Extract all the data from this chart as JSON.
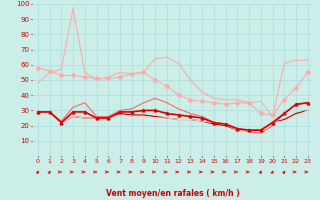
{
  "x": [
    0,
    1,
    2,
    3,
    4,
    5,
    6,
    7,
    8,
    9,
    10,
    11,
    12,
    13,
    14,
    15,
    16,
    17,
    18,
    19,
    20,
    21,
    22,
    23
  ],
  "series": [
    {
      "name": "rafales_max_line",
      "color": "#ffaaaa",
      "linewidth": 0.8,
      "marker": null,
      "values": [
        48,
        55,
        57,
        97,
        55,
        50,
        52,
        55,
        54,
        55,
        64,
        65,
        61,
        50,
        42,
        38,
        37,
        37,
        35,
        36,
        26,
        61,
        63,
        63
      ]
    },
    {
      "name": "rafales_mean_diamond",
      "color": "#ffaaaa",
      "linewidth": 0.8,
      "marker": "D",
      "markersize": 2,
      "values": [
        58,
        56,
        53,
        53,
        52,
        51,
        51,
        52,
        54,
        55,
        50,
        46,
        40,
        37,
        36,
        35,
        34,
        35,
        35,
        28,
        27,
        37,
        45,
        55
      ]
    },
    {
      "name": "vent_moyen_max",
      "color": "#ff6666",
      "linewidth": 0.8,
      "marker": null,
      "values": [
        29,
        29,
        23,
        32,
        35,
        26,
        26,
        30,
        31,
        35,
        38,
        35,
        31,
        28,
        26,
        22,
        21,
        18,
        16,
        15,
        20,
        28,
        34,
        35
      ]
    },
    {
      "name": "vent_moyen_mean",
      "color": "#dd0000",
      "linewidth": 1.2,
      "marker": "^",
      "markersize": 2,
      "values": [
        29,
        29,
        22,
        29,
        29,
        25,
        25,
        29,
        29,
        30,
        30,
        28,
        27,
        26,
        25,
        22,
        21,
        18,
        17,
        17,
        22,
        28,
        34,
        35
      ]
    },
    {
      "name": "vent_moyen_min",
      "color": "#aa0000",
      "linewidth": 0.8,
      "marker": null,
      "values": [
        29,
        29,
        22,
        26,
        25,
        25,
        25,
        28,
        27,
        27,
        26,
        25,
        24,
        24,
        23,
        21,
        20,
        17,
        17,
        17,
        22,
        24,
        28,
        30
      ]
    },
    {
      "name": "rafales_min_line",
      "color": "#ffcccc",
      "linewidth": 0.8,
      "marker": null,
      "values": [
        29,
        29,
        22,
        26,
        25,
        25,
        25,
        27,
        26,
        26,
        25,
        25,
        24,
        24,
        23,
        22,
        21,
        17,
        17,
        17,
        22,
        23,
        26,
        30
      ]
    }
  ],
  "arrow_directions": [
    2,
    2,
    1,
    1,
    1,
    1,
    1,
    1,
    1,
    1,
    1,
    1,
    1,
    1,
    1,
    1,
    1,
    1,
    1,
    2,
    2,
    2,
    1,
    1
  ],
  "xlim": [
    -0.5,
    23.5
  ],
  "ylim": [
    0,
    100
  ],
  "yticks": [
    10,
    20,
    30,
    40,
    50,
    60,
    70,
    80,
    90,
    100
  ],
  "xticks": [
    0,
    1,
    2,
    3,
    4,
    5,
    6,
    7,
    8,
    9,
    10,
    11,
    12,
    13,
    14,
    15,
    16,
    17,
    18,
    19,
    20,
    21,
    22,
    23
  ],
  "xlabel": "Vent moyen/en rafales ( km/h )",
  "background_color": "#cceee8",
  "grid_color": "#aadddd",
  "label_color": "#cc0000"
}
